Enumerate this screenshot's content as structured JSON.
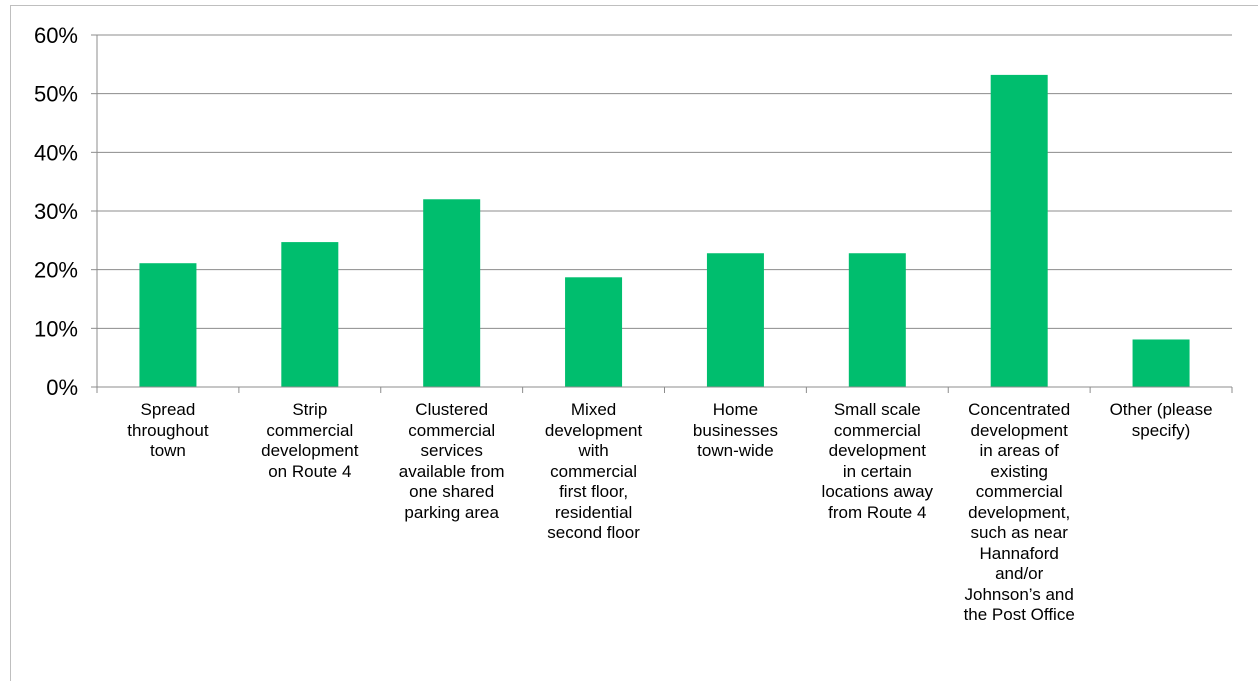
{
  "chart_data": {
    "type": "bar",
    "title": "",
    "xlabel": "",
    "ylabel": "",
    "ylim": [
      0,
      0.6
    ],
    "y_ticks": [
      "0%",
      "10%",
      "20%",
      "30%",
      "40%",
      "50%",
      "60%"
    ],
    "grid": true,
    "bar_color": "#00be6e",
    "categories": [
      "Spread\nthroughout\ntown",
      "Strip\ncommercial\ndevelopment\non Route 4",
      "Clustered\ncommercial\nservices\navailable from\none shared\nparking area",
      "Mixed\ndevelopment\nwith\ncommercial\nfirst floor,\nresidential\nsecond floor",
      "Home\nbusinesses\ntown-wide",
      "Small scale\ncommercial\ndevelopment\nin certain\nlocations away\nfrom Route 4",
      "Concentrated\ndevelopment\nin areas of\nexisting\ncommercial\ndevelopment,\nsuch as near\nHannaford\nand/or\nJohnson’s and\nthe Post Office",
      "Other (please\nspecify)"
    ],
    "values": [
      0.211,
      0.247,
      0.32,
      0.187,
      0.228,
      0.228,
      0.532,
      0.081
    ]
  }
}
